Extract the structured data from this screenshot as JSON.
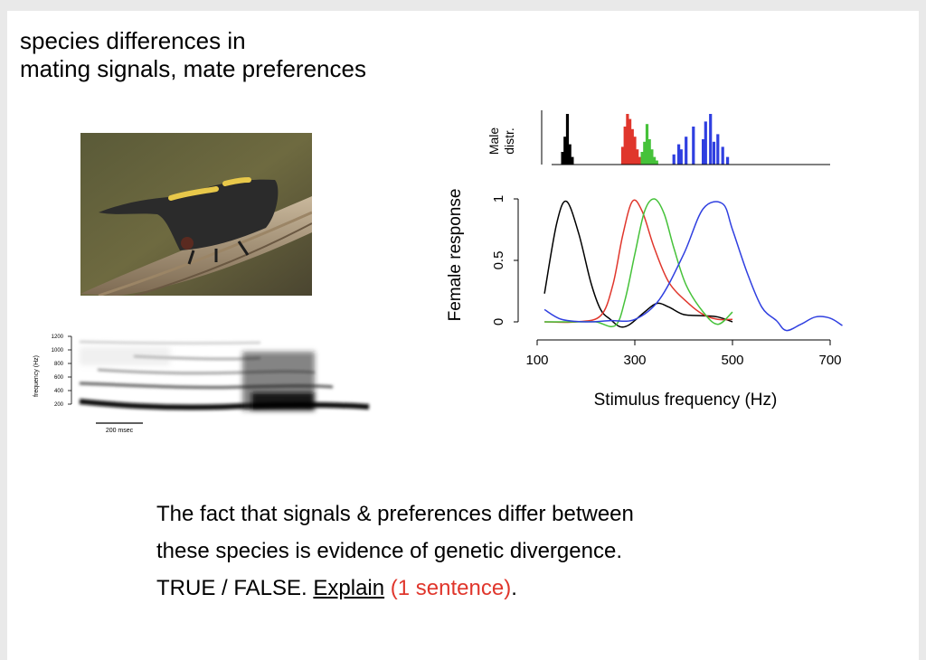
{
  "slide": {
    "title_line1": "species differences in",
    "title_line2": "mating signals, mate preferences"
  },
  "spectrogram": {
    "ylabel": "frequency (Hz)",
    "ticks": [
      "1200",
      "1000",
      "800",
      "600",
      "400",
      "200"
    ],
    "scale_label": "200 msec"
  },
  "chart_data": {
    "type": "line",
    "xlabel": "Stimulus frequency (Hz)",
    "ylabel": "Female response",
    "top_ylabel": "Male distr.",
    "top_ylabel_line1": "Male",
    "top_ylabel_line2": "distr.",
    "xticks": [
      "100",
      "300",
      "500",
      "700"
    ],
    "yticks": [
      "0",
      "0.5",
      "1"
    ],
    "xlim": [
      100,
      700
    ],
    "ylim": [
      0,
      1
    ],
    "series": [
      {
        "color": "#000000",
        "x": [
          115,
          140,
          160,
          185,
          210,
          230,
          250,
          270,
          290,
          320,
          345,
          370,
          400,
          440,
          470,
          500
        ],
        "y": [
          0.23,
          0.8,
          0.98,
          0.72,
          0.32,
          0.1,
          0.02,
          -0.04,
          -0.02,
          0.08,
          0.15,
          0.12,
          0.06,
          0.05,
          0.04,
          0.0
        ]
      },
      {
        "color": "#e0362c",
        "x": [
          115,
          180,
          230,
          255,
          275,
          295,
          315,
          340,
          370,
          410,
          440,
          470,
          500
        ],
        "y": [
          0.0,
          0.0,
          0.05,
          0.3,
          0.7,
          0.98,
          0.9,
          0.6,
          0.32,
          0.15,
          0.06,
          0.02,
          0.02
        ]
      },
      {
        "color": "#46c23a",
        "x": [
          115,
          180,
          220,
          260,
          280,
          300,
          320,
          340,
          360,
          380,
          405,
          440,
          470,
          500
        ],
        "y": [
          0.0,
          0.0,
          0.0,
          -0.03,
          0.18,
          0.55,
          0.9,
          1.0,
          0.88,
          0.6,
          0.3,
          0.08,
          -0.02,
          0.08
        ]
      },
      {
        "color": "#2f3fe0",
        "x": [
          115,
          150,
          200,
          250,
          300,
          350,
          400,
          440,
          480,
          500,
          530,
          560,
          590,
          610,
          640,
          670,
          700,
          725
        ],
        "y": [
          0.1,
          0.02,
          0.0,
          0.01,
          0.02,
          0.18,
          0.55,
          0.92,
          0.96,
          0.75,
          0.4,
          0.12,
          0.01,
          -0.07,
          -0.02,
          0.04,
          0.03,
          -0.03
        ]
      }
    ],
    "male_distr": [
      {
        "color": "#000000",
        "bins": [
          152,
          157,
          162,
          167,
          172
        ],
        "heights": [
          0.25,
          0.55,
          1.0,
          0.4,
          0.15
        ]
      },
      {
        "color": "#e0362c",
        "bins": [
          275,
          280,
          285,
          290,
          295,
          300,
          305,
          310,
          315
        ],
        "heights": [
          0.35,
          0.75,
          1.0,
          0.9,
          0.7,
          0.55,
          0.3,
          0.15,
          0.08
        ]
      },
      {
        "color": "#46c23a",
        "bins": [
          315,
          320,
          325,
          330,
          335,
          340,
          345
        ],
        "heights": [
          0.25,
          0.45,
          0.8,
          0.5,
          0.3,
          0.15,
          0.08
        ]
      },
      {
        "color": "#2f3fe0",
        "bins": [
          380,
          390,
          395,
          405,
          420,
          440,
          445,
          455,
          462,
          470,
          480,
          490
        ],
        "heights": [
          0.2,
          0.4,
          0.3,
          0.55,
          0.75,
          0.5,
          0.85,
          1.0,
          0.45,
          0.6,
          0.35,
          0.15
        ]
      }
    ]
  },
  "question": {
    "line1": "The fact that signals & preferences differ between",
    "line2": "these species is evidence of genetic divergence.",
    "line3_prefix": "TRUE / FALSE. ",
    "explain": "Explain",
    "space": " ",
    "paren": "(1 sentence)",
    "period": "."
  },
  "colors": {
    "red": "#e0362c",
    "green": "#46c23a",
    "blue": "#2f3fe0",
    "black": "#000000"
  }
}
